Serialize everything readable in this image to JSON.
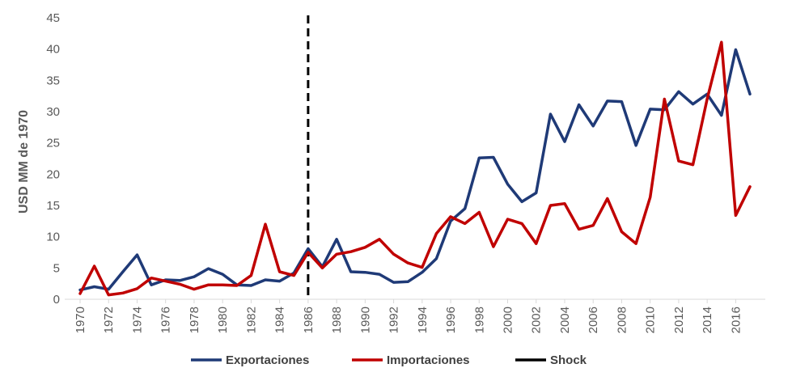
{
  "chart_data": {
    "type": "line",
    "title": "",
    "xlabel": "",
    "ylabel": "USD MM de 1970",
    "ylim": [
      0,
      45
    ],
    "yticks": [
      0,
      5,
      10,
      15,
      20,
      25,
      30,
      35,
      40,
      45
    ],
    "xticks": [
      "1970",
      "1972",
      "1974",
      "1976",
      "1978",
      "1980",
      "1982",
      "1984",
      "1986",
      "1988",
      "1990",
      "1992",
      "1994",
      "1996",
      "1998",
      "2000",
      "2002",
      "2004",
      "2006",
      "2008",
      "2010",
      "2012",
      "2014",
      "2016"
    ],
    "x": [
      1970,
      1971,
      1972,
      1973,
      1974,
      1975,
      1976,
      1977,
      1978,
      1979,
      1980,
      1981,
      1982,
      1983,
      1984,
      1985,
      1986,
      1987,
      1988,
      1989,
      1990,
      1991,
      1992,
      1993,
      1994,
      1995,
      1996,
      1997,
      1998,
      1999,
      2000,
      2001,
      2002,
      2003,
      2004,
      2005,
      2006,
      2007,
      2008,
      2009,
      2010,
      2011,
      2012,
      2013,
      2014,
      2015,
      2016,
      2017
    ],
    "grid": "horizontal",
    "legend_position": "bottom",
    "series": [
      {
        "name": "Exportaciones",
        "color": "#1f3a77",
        "values": [
          1.5,
          2.0,
          1.6,
          4.4,
          7.1,
          2.3,
          3.1,
          3.0,
          3.6,
          4.9,
          4.0,
          2.3,
          2.2,
          3.1,
          2.9,
          4.2,
          8.1,
          5.2,
          9.6,
          4.4,
          4.3,
          4.0,
          2.7,
          2.8,
          4.3,
          6.5,
          12.5,
          14.5,
          22.6,
          22.7,
          18.4,
          15.6,
          17.0,
          29.6,
          25.2,
          31.1,
          27.7,
          31.7,
          31.6,
          24.6,
          30.4,
          30.3,
          33.2,
          31.2,
          32.8,
          29.4,
          39.9,
          32.8
        ]
      },
      {
        "name": "Importaciones",
        "color": "#c00000",
        "values": [
          0.9,
          5.3,
          0.7,
          1.0,
          1.7,
          3.4,
          2.9,
          2.4,
          1.6,
          2.3,
          2.3,
          2.2,
          3.8,
          12.0,
          4.4,
          3.8,
          7.5,
          5.0,
          7.2,
          7.6,
          8.3,
          9.6,
          7.2,
          5.8,
          5.1,
          10.5,
          13.2,
          12.1,
          13.9,
          8.4,
          12.8,
          12.1,
          8.9,
          15.0,
          15.3,
          11.2,
          11.8,
          16.1,
          10.8,
          8.9,
          16.3,
          32.0,
          22.1,
          21.5,
          32.0,
          41.1,
          13.4,
          18.0
        ]
      }
    ],
    "annotations": [
      {
        "type": "vertical-dashed-line",
        "name": "Shock",
        "x": 1986,
        "color": "#000000"
      }
    ]
  }
}
